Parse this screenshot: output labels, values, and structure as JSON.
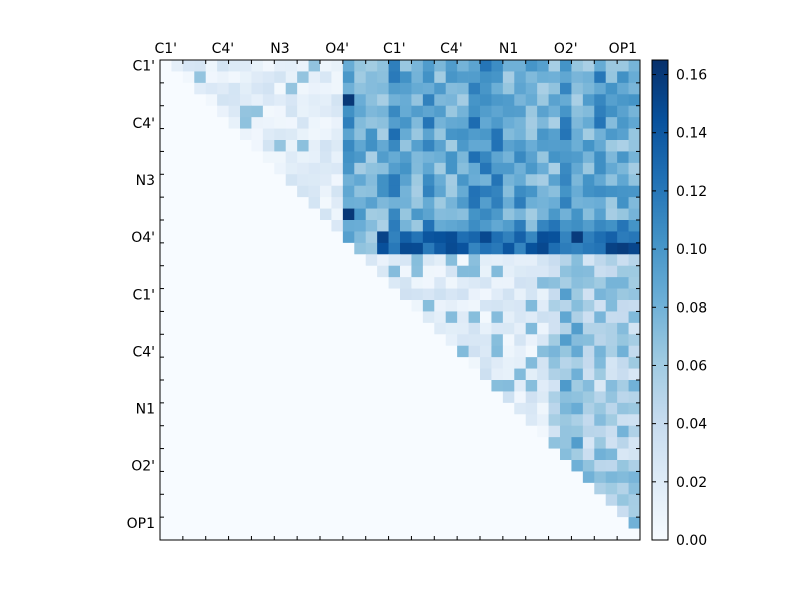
{
  "chart_data": {
    "type": "heatmap",
    "title": "",
    "xlabel": "",
    "ylabel": "",
    "n": 42,
    "x_tick_labels": [
      "C1'",
      "C4'",
      "N3",
      "O4'",
      "C1'",
      "C4'",
      "N1",
      "O2'",
      "OP1"
    ],
    "y_tick_labels": [
      "C1'",
      "C4'",
      "N3",
      "O4'",
      "C1'",
      "C4'",
      "N1",
      "O2'",
      "OP1"
    ],
    "tick_label_position": "top and left",
    "colormap": "Blues",
    "vmin": 0.0,
    "vmax": 0.165,
    "colorbar": {
      "position": "right",
      "ticks": [
        0.0,
        0.02,
        0.04,
        0.06,
        0.08,
        0.1,
        0.12,
        0.14,
        0.16
      ],
      "tick_labels": [
        "0.00",
        "0.02",
        "0.04",
        "0.06",
        "0.08",
        "0.10",
        "0.12",
        "0.14",
        "0.16"
      ]
    },
    "matrix_note": "upper-triangular; values approximate",
    "values": []
  }
}
